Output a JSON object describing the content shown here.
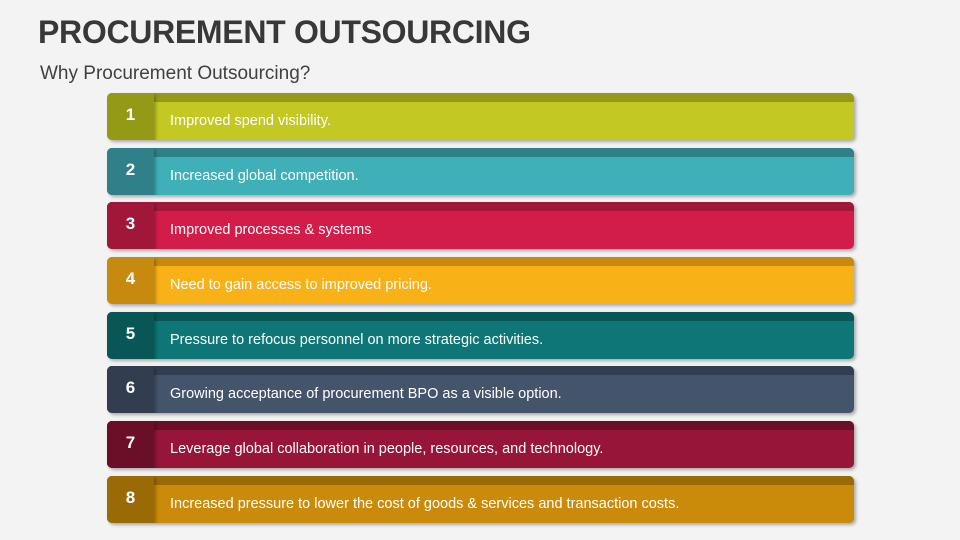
{
  "title": "PROCUREMENT OUTSOURCING",
  "subtitle": "Why Procurement Outsourcing?",
  "items": [
    {
      "number": "1",
      "text": "Improved spend visibility.",
      "color": "#c3c823",
      "dark": "#949a15"
    },
    {
      "number": "2",
      "text": "Increased global competition.",
      "color": "#3fafb8",
      "dark": "#2f8088"
    },
    {
      "number": "3",
      "text": "Improved processes & systems",
      "color": "#d21c4a",
      "dark": "#a0173a"
    },
    {
      "number": "4",
      "text": "Need to gain access to improved pricing.",
      "color": "#f9b118",
      "dark": "#c78a0f"
    },
    {
      "number": "5",
      "text": "Pressure to refocus personnel on more strategic activities.",
      "color": "#0e7676",
      "dark": "#095656"
    },
    {
      "number": "6",
      "text": "Growing acceptance of procurement BPO as a visible option.",
      "color": "#44546a",
      "dark": "#323e4f"
    },
    {
      "number": "7",
      "text": "Leverage global collaboration in people, resources, and technology.",
      "color": "#961538",
      "dark": "#6b0f28"
    },
    {
      "number": "8",
      "text": "Increased pressure to lower the cost of goods & services and transaction costs.",
      "color": "#c98b09",
      "dark": "#9a6a06"
    }
  ]
}
